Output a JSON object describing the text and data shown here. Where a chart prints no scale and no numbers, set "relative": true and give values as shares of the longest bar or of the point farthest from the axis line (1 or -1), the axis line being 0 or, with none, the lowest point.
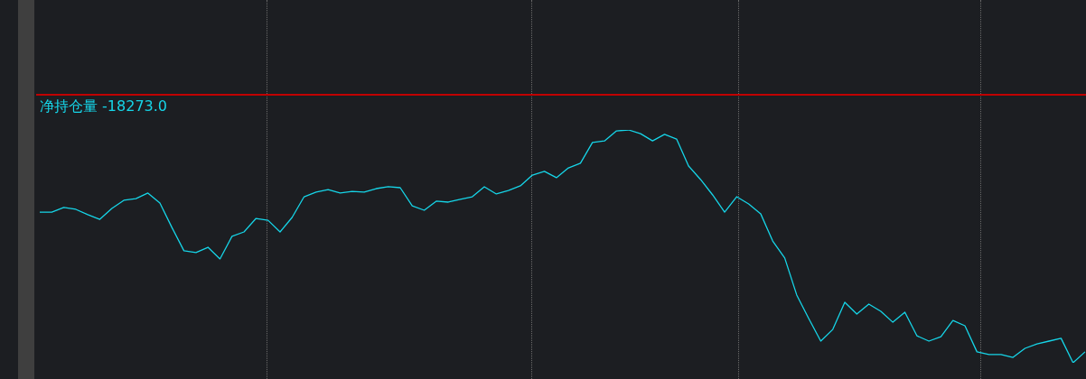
{
  "chart_data": {
    "type": "line",
    "title": "净持仓量 -18273.0",
    "relative": true,
    "tick_labels": false,
    "categories": [
      null,
      null,
      null,
      null,
      null,
      null,
      null,
      null,
      null,
      null,
      null,
      null,
      null,
      null,
      null,
      null,
      null,
      null,
      null,
      null,
      null,
      null,
      null,
      null,
      null,
      null,
      null,
      null,
      null,
      null,
      null,
      null,
      null,
      null,
      null,
      null,
      null,
      null,
      null,
      null,
      null,
      null,
      null,
      null,
      null,
      null,
      null,
      null,
      null,
      null,
      null,
      null,
      null,
      null,
      null,
      null,
      null,
      null,
      null,
      null,
      null,
      null,
      null,
      null,
      null,
      null,
      null,
      null,
      null,
      null,
      null,
      null,
      null,
      null,
      null,
      null,
      null,
      null,
      null,
      null,
      null,
      null,
      null,
      null,
      null,
      null,
      null,
      null
    ],
    "series": [
      {
        "color": "#16d5e8",
        "values": [
          0.647,
          0.647,
          0.667,
          0.659,
          0.636,
          0.616,
          0.663,
          0.698,
          0.705,
          0.729,
          0.686,
          0.581,
          0.481,
          0.473,
          0.496,
          0.446,
          0.543,
          0.562,
          0.62,
          0.612,
          0.562,
          0.624,
          0.713,
          0.733,
          0.744,
          0.729,
          0.736,
          0.733,
          0.748,
          0.756,
          0.752,
          0.674,
          0.655,
          0.694,
          0.69,
          0.702,
          0.713,
          0.756,
          0.725,
          0.74,
          0.76,
          0.806,
          0.822,
          0.795,
          0.837,
          0.857,
          0.946,
          0.953,
          0.996,
          1,
          0.984,
          0.953,
          0.981,
          0.961,
          0.845,
          0.787,
          0.721,
          0.647,
          0.713,
          0.682,
          0.64,
          0.523,
          0.45,
          0.291,
          0.19,
          0.093,
          0.143,
          0.26,
          0.209,
          0.252,
          0.221,
          0.174,
          0.217,
          0.116,
          0.093,
          0.112,
          0.182,
          0.159,
          0.047,
          0.035,
          0.035,
          0.023,
          0.062,
          0.081,
          0.093,
          0.105,
          0,
          0.047
        ]
      }
    ]
  }
}
